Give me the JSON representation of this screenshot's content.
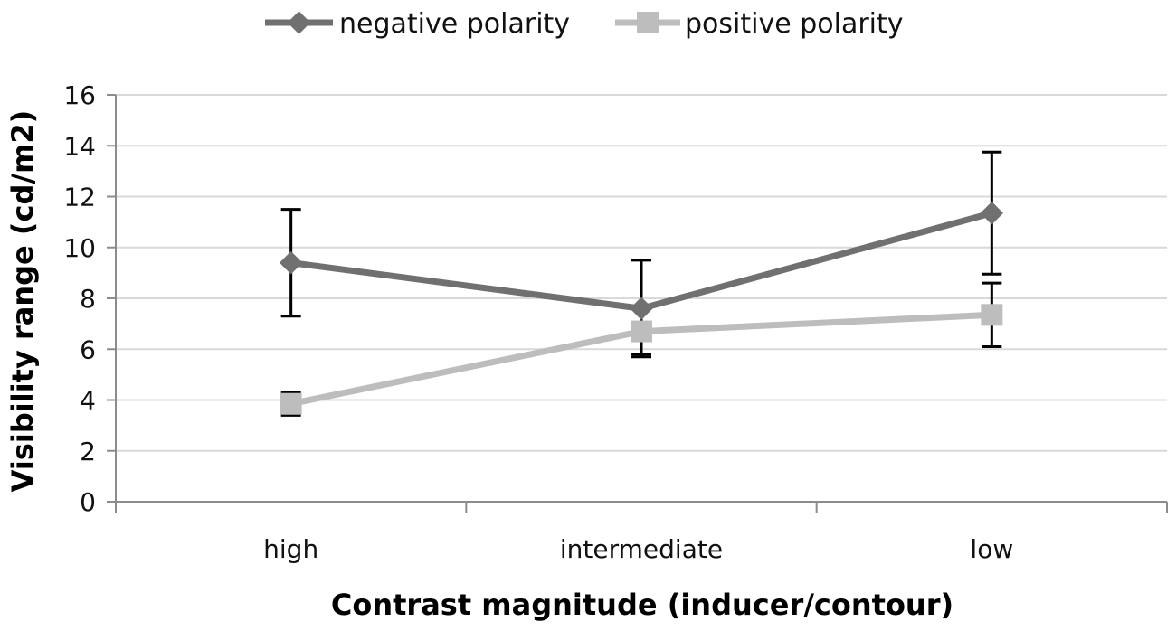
{
  "chart_data": {
    "type": "line",
    "title": "",
    "xlabel": "Contrast magnitude (inducer/contour)",
    "ylabel": "Visibility range (cd/m2)",
    "categories": [
      "high",
      "intermediate",
      "low"
    ],
    "ylim": [
      0,
      16
    ],
    "yticks": [
      "0",
      "2",
      "4",
      "6",
      "8",
      "10",
      "12",
      "14",
      "16"
    ],
    "grid": true,
    "legend_position": "top",
    "series": [
      {
        "name": "negative polarity",
        "values": [
          9.4,
          7.6,
          11.35
        ],
        "error": [
          2.1,
          1.9,
          2.4
        ],
        "marker": "diamond",
        "color": "#707070"
      },
      {
        "name": "positive polarity",
        "values": [
          3.85,
          6.7,
          7.35
        ],
        "error": [
          0.45,
          0.9,
          1.25
        ],
        "marker": "square",
        "color": "#bdbdbd"
      }
    ]
  }
}
